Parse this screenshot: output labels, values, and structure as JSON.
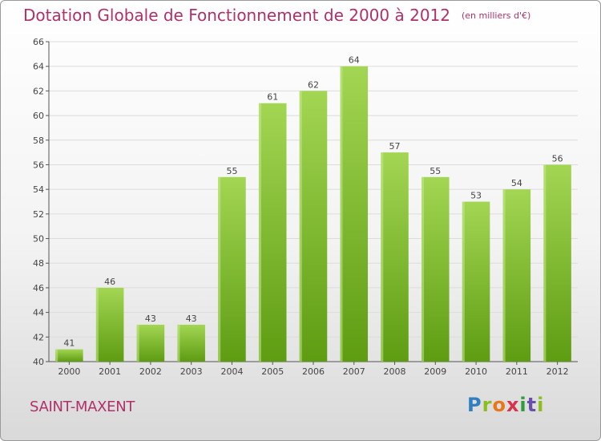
{
  "header": {
    "title": "Dotation Globale de Fonctionnement de 2000 à 2012",
    "unit": "(en milliers d'€)"
  },
  "footer": {
    "commune": "SAINT-MAXENT",
    "logo": "Proxiti"
  },
  "colors": {
    "title": "#b0306a",
    "bar_light": "#9fd34c",
    "bar_dark": "#5c9a12",
    "grid": "#d8d8d8"
  },
  "chart_data": {
    "type": "bar",
    "title": "Dotation Globale de Fonctionnement de 2000 à 2012",
    "xlabel": "",
    "ylabel": "",
    "categories": [
      "2000",
      "2001",
      "2002",
      "2003",
      "2004",
      "2005",
      "2006",
      "2007",
      "2008",
      "2009",
      "2010",
      "2011",
      "2012"
    ],
    "values": [
      41,
      46,
      43,
      43,
      55,
      61,
      62,
      64,
      57,
      55,
      53,
      54,
      56
    ],
    "data_labels": [
      "41",
      "46",
      "43",
      "43",
      "55",
      "61",
      "62",
      "64",
      "57",
      "55",
      "53",
      "54",
      "56"
    ],
    "ylim": [
      40,
      66
    ],
    "yticks": [
      40,
      42,
      44,
      46,
      48,
      50,
      52,
      54,
      56,
      58,
      60,
      62,
      64,
      66
    ],
    "grid": true,
    "legend": "none"
  }
}
